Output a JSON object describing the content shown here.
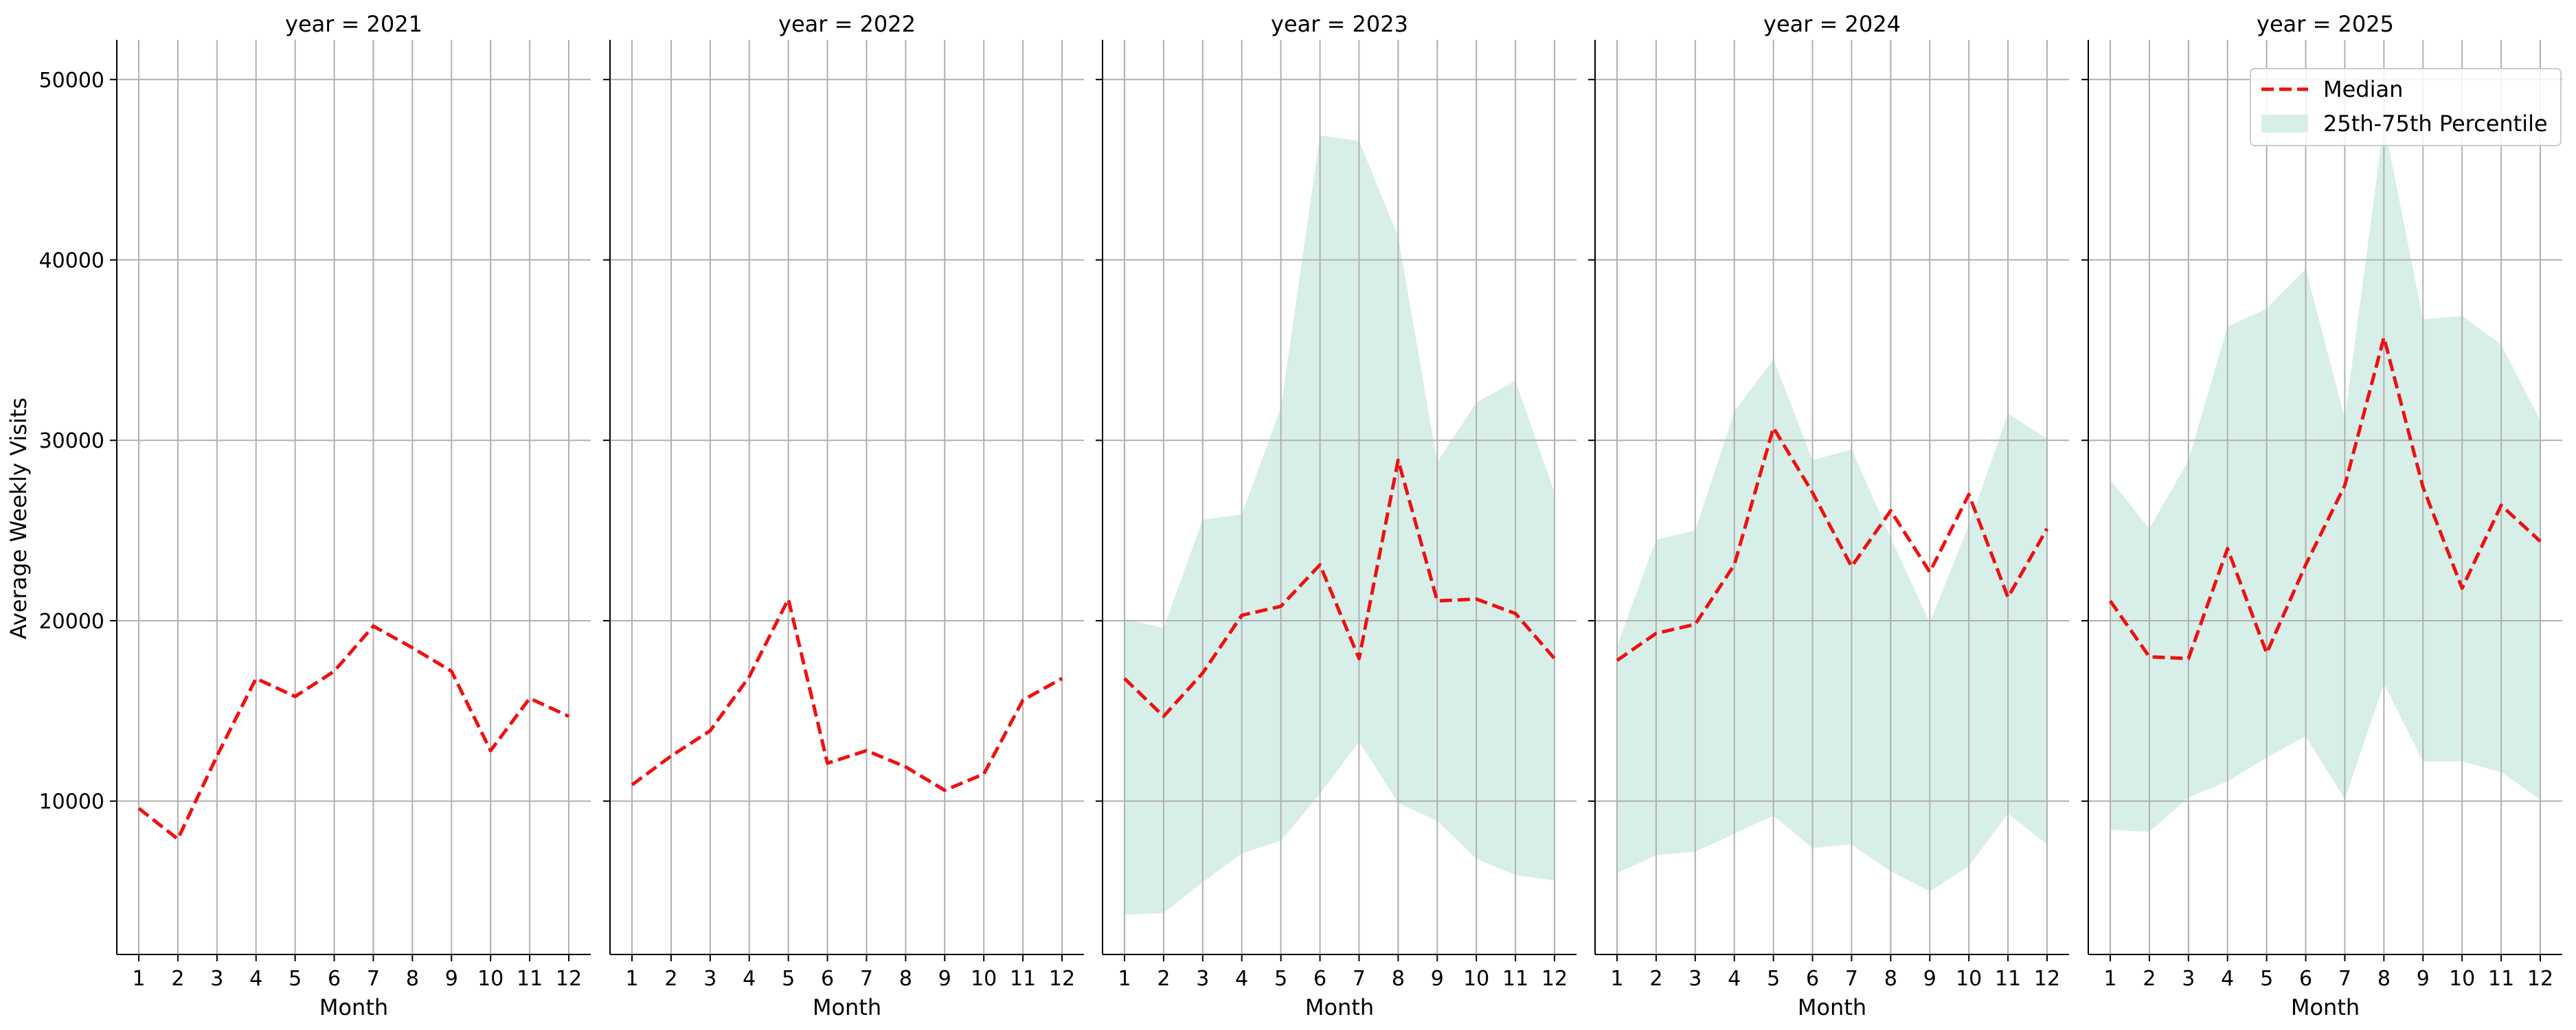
{
  "chart_data": {
    "type": "line",
    "ylabel": "Average Weekly Visits",
    "xlabel": "Month",
    "x": [
      1,
      2,
      3,
      4,
      5,
      6,
      7,
      8,
      9,
      10,
      11,
      12
    ],
    "xticks": [
      "1",
      "2",
      "3",
      "4",
      "5",
      "6",
      "7",
      "8",
      "9",
      "10",
      "11",
      "12"
    ],
    "ylim": [
      1500,
      52200
    ],
    "yticks": [
      10000,
      20000,
      30000,
      40000,
      50000
    ],
    "ytick_labels": [
      "10000",
      "20000",
      "30000",
      "40000",
      "50000"
    ],
    "grid": true,
    "legend": {
      "placement": "top-right (last panel)",
      "entries": [
        {
          "label": "Median",
          "style": "dashed-line",
          "color": "#ee1111"
        },
        {
          "label": "25th-75th Percentile",
          "style": "band",
          "color": "#d8efe9"
        }
      ]
    },
    "colors": {
      "median": "#ee1111",
      "band": "#d8efe9"
    },
    "panels": [
      {
        "title": "year = 2021",
        "median": [
          9600,
          7900,
          12500,
          16800,
          15800,
          17200,
          19700,
          18500,
          17200,
          12800,
          15700,
          14700
        ],
        "p25": null,
        "p75": null
      },
      {
        "title": "year = 2022",
        "median": [
          10900,
          12500,
          13900,
          16900,
          21200,
          12100,
          12800,
          11900,
          10600,
          11500,
          15600,
          16800
        ],
        "p25": null,
        "p75": null
      },
      {
        "title": "year = 2023",
        "median": [
          16800,
          14700,
          17100,
          20300,
          20800,
          23100,
          17900,
          28900,
          21100,
          21200,
          20400,
          17900
        ],
        "p25": [
          3700,
          3800,
          5500,
          7100,
          7800,
          10400,
          13300,
          9900,
          8900,
          6800,
          5900,
          5600
        ],
        "p75": [
          20100,
          19600,
          25600,
          25900,
          31800,
          46900,
          46600,
          41300,
          28800,
          32100,
          33300,
          27100
        ]
      },
      {
        "title": "year = 2024",
        "median": [
          17800,
          19300,
          19800,
          23100,
          30700,
          27100,
          23000,
          26100,
          22700,
          27000,
          21300,
          25100
        ],
        "p25": [
          6000,
          7000,
          7200,
          8200,
          9200,
          7400,
          7600,
          6100,
          5000,
          6400,
          9300,
          7600
        ],
        "p75": [
          18600,
          24500,
          25000,
          31600,
          34500,
          28900,
          29500,
          24600,
          19900,
          25300,
          31500,
          30100
        ]
      },
      {
        "title": "year = 2025",
        "median": [
          21100,
          18000,
          17900,
          24000,
          18200,
          23100,
          27500,
          35700,
          27400,
          21800,
          26400,
          24400
        ],
        "p25": [
          8400,
          8300,
          10200,
          11100,
          12400,
          13600,
          10100,
          16500,
          12200,
          12200,
          11600,
          10100
        ],
        "p75": [
          27800,
          25100,
          28900,
          36300,
          37300,
          39500,
          31200,
          47600,
          36700,
          36900,
          35300,
          31100
        ]
      }
    ]
  }
}
